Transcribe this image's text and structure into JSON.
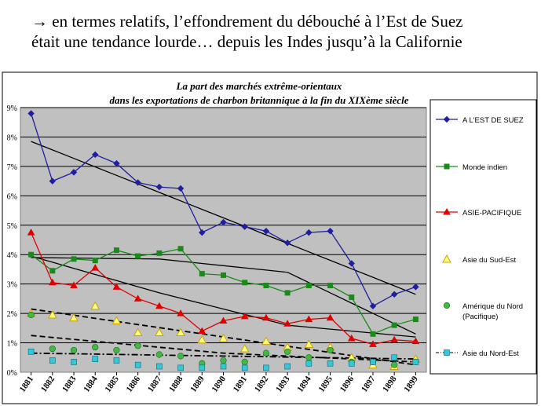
{
  "slide": {
    "line1": "→ en termes relatifs, l’effondrement du débouché à l’Est de Suez",
    "line2": "était une tendance lourde… depuis les Indes jusqu’à la Californie"
  },
  "chart_data": {
    "type": "line",
    "title_line1": "La part des marchés extrême-orientaux",
    "title_line2": "dans les exportations de charbon britannique à la fin du XIXème siècle",
    "categories": [
      "1881",
      "1882",
      "1883",
      "1884",
      "1885",
      "1886",
      "1887",
      "1888",
      "1889",
      "1890",
      "1891",
      "1892",
      "1893",
      "1894",
      "1895",
      "1896",
      "1897",
      "1898",
      "1899"
    ],
    "yticks": [
      "0%",
      "1%",
      "2%",
      "3%",
      "4%",
      "5%",
      "6%",
      "7%",
      "8%",
      "9%"
    ],
    "ylim": [
      0,
      9
    ],
    "grid": true,
    "legend_position": "right",
    "series": [
      {
        "name": "A L'EST DE SUEZ",
        "color": "#1f1f9f",
        "marker": "diamond",
        "line": "solid",
        "values": [
          8.8,
          6.5,
          6.8,
          7.4,
          7.1,
          6.45,
          6.3,
          6.25,
          4.75,
          5.1,
          4.95,
          4.8,
          4.4,
          4.75,
          4.8,
          3.7,
          2.25,
          2.65,
          2.9
        ]
      },
      {
        "name": "Monde indien",
        "color": "#1a8a1a",
        "marker": "square",
        "line": "solid",
        "values": [
          4.0,
          3.45,
          3.85,
          3.8,
          4.15,
          3.95,
          4.05,
          4.2,
          3.35,
          3.3,
          3.05,
          2.95,
          2.7,
          2.95,
          2.95,
          2.55,
          1.3,
          1.6,
          1.8
        ]
      },
      {
        "name": "ASIE-PACIFIQUE",
        "color": "#e00000",
        "marker": "triangle",
        "line": "solid",
        "values": [
          4.75,
          3.05,
          2.95,
          3.55,
          2.9,
          2.5,
          2.25,
          2.0,
          1.4,
          1.75,
          1.9,
          1.85,
          1.65,
          1.8,
          1.85,
          1.15,
          0.95,
          1.1,
          1.05
        ]
      },
      {
        "name": "Asie du Sud-Est",
        "color": "#e8c000",
        "marker": "triangle-open",
        "line": "none",
        "values": [
          2.0,
          1.95,
          1.85,
          2.25,
          1.75,
          1.35,
          1.35,
          1.35,
          1.1,
          1.15,
          0.8,
          1.05,
          0.85,
          0.95,
          0.85,
          0.5,
          0.25,
          0.2,
          0.45
        ]
      },
      {
        "name": "Amérique du Nord (Pacifique)",
        "color": "#44b844",
        "marker": "circle",
        "line": "none",
        "values": [
          1.95,
          0.8,
          0.75,
          0.85,
          0.75,
          0.9,
          0.6,
          0.55,
          0.3,
          0.4,
          0.35,
          0.65,
          0.7,
          0.5,
          0.75,
          0.35,
          0.35,
          0.25,
          0.35
        ]
      },
      {
        "name": "Asie du Nord-Est",
        "color": "#33c8d8",
        "marker": "square-open",
        "line": "none",
        "values": [
          0.7,
          0.4,
          0.35,
          0.45,
          0.4,
          0.25,
          0.2,
          0.15,
          0.15,
          0.2,
          0.15,
          0.15,
          0.2,
          0.3,
          0.3,
          0.3,
          0.35,
          0.5,
          0.35
        ]
      }
    ],
    "trendlines": [
      {
        "style": "solid",
        "values": [
          7.85,
          2.65
        ]
      },
      {
        "style": "solid",
        "values": [
          3.9,
          3.85,
          3.4,
          1.3
        ]
      },
      {
        "style": "solid",
        "values": [
          3.95,
          2.7,
          1.6,
          1.2
        ]
      },
      {
        "style": "dash",
        "values": [
          2.15,
          0.25
        ]
      },
      {
        "style": "dash",
        "values": [
          1.25,
          0.65,
          0.35
        ]
      },
      {
        "style": "dashdot",
        "values": [
          0.65,
          0.45
        ]
      }
    ]
  }
}
